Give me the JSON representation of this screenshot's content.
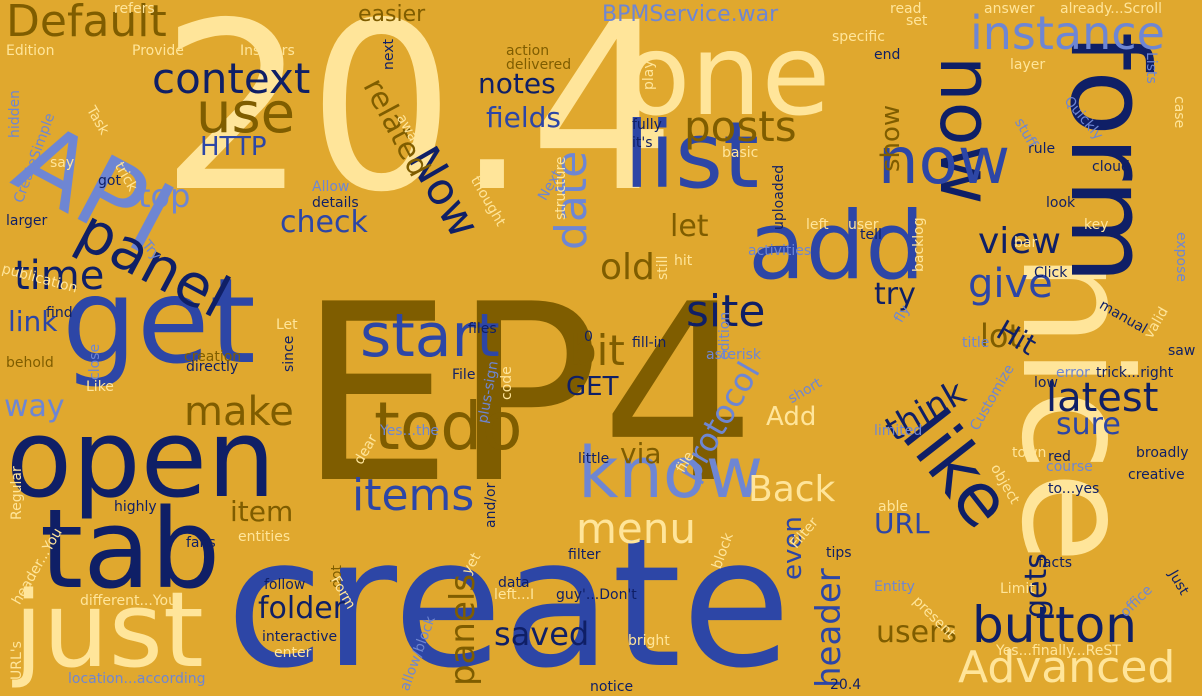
{
  "words": [
    {
      "text": "20.4",
      "color": "c1"
    },
    {
      "text": "EP4",
      "color": "c2"
    },
    {
      "text": "create",
      "color": "c4"
    },
    {
      "text": "nice",
      "color": "c1"
    },
    {
      "text": "form",
      "color": "c3"
    },
    {
      "text": "one",
      "color": "c1"
    },
    {
      "text": "API",
      "color": "c5"
    },
    {
      "text": "get",
      "color": "c4"
    },
    {
      "text": "open",
      "color": "c3"
    },
    {
      "text": "tab",
      "color": "c3"
    },
    {
      "text": "just",
      "color": "c1"
    },
    {
      "text": "list",
      "color": "c4"
    },
    {
      "text": "add",
      "color": "c4"
    },
    {
      "text": "now",
      "color": "c3"
    },
    {
      "text": "now",
      "color": "c4"
    },
    {
      "text": "know",
      "color": "c5"
    },
    {
      "text": "like",
      "color": "c3"
    },
    {
      "text": "todo",
      "color": "c2"
    },
    {
      "text": "start",
      "color": "c4"
    },
    {
      "text": "panel",
      "color": "c3"
    },
    {
      "text": "use",
      "color": "c2"
    },
    {
      "text": "button",
      "color": "c3"
    },
    {
      "text": "Advanced",
      "color": "c1"
    },
    {
      "text": "instance",
      "color": "c5"
    },
    {
      "text": "context",
      "color": "c3"
    },
    {
      "text": "Default",
      "color": "c2"
    },
    {
      "text": "Now",
      "color": "c3"
    },
    {
      "text": "items",
      "color": "c4"
    },
    {
      "text": "menu",
      "color": "c1"
    },
    {
      "text": "site",
      "color": "c3"
    },
    {
      "text": "posts",
      "color": "c2"
    },
    {
      "text": "date",
      "color": "c5"
    },
    {
      "text": "bit",
      "color": "c2"
    },
    {
      "text": "time",
      "color": "c3"
    },
    {
      "text": "make",
      "color": "c2"
    },
    {
      "text": "view",
      "color": "c3"
    },
    {
      "text": "give",
      "color": "c4"
    },
    {
      "text": "latest",
      "color": "c3"
    },
    {
      "text": "header",
      "color": "c4"
    },
    {
      "text": "protocol",
      "color": "c5"
    },
    {
      "text": "think",
      "color": "c3"
    },
    {
      "text": "Back",
      "color": "c1"
    },
    {
      "text": "saved",
      "color": "c3"
    },
    {
      "text": "panels",
      "color": "c2"
    },
    {
      "text": "folder",
      "color": "c3"
    },
    {
      "text": "users",
      "color": "c2"
    },
    {
      "text": "gets",
      "color": "c3"
    },
    {
      "text": "lot",
      "color": "c2"
    },
    {
      "text": "sure",
      "color": "c4"
    },
    {
      "text": "check",
      "color": "c4"
    },
    {
      "text": "fields",
      "color": "c4"
    },
    {
      "text": "notes",
      "color": "c3"
    },
    {
      "text": "related",
      "color": "c2"
    },
    {
      "text": "HTTP",
      "color": "c4"
    },
    {
      "text": "top",
      "color": "c5"
    },
    {
      "text": "link",
      "color": "c4"
    },
    {
      "text": "way",
      "color": "c5"
    },
    {
      "text": "item",
      "color": "c2"
    },
    {
      "text": "old",
      "color": "c2"
    },
    {
      "text": "let",
      "color": "c2"
    },
    {
      "text": "try",
      "color": "c3"
    },
    {
      "text": "Hit",
      "color": "c3"
    },
    {
      "text": "show",
      "color": "c2"
    },
    {
      "text": "Add",
      "color": "c1"
    },
    {
      "text": "via",
      "color": "c2"
    },
    {
      "text": "URL",
      "color": "c4"
    },
    {
      "text": "even",
      "color": "c4"
    },
    {
      "text": "GET",
      "color": "c3"
    },
    {
      "text": "BPMService.war",
      "color": "c5"
    },
    {
      "text": "easier",
      "color": "c2"
    },
    {
      "text": "Insiders",
      "color": "c1"
    },
    {
      "text": "Provide",
      "color": "c1"
    },
    {
      "text": "refers",
      "color": "c1"
    },
    {
      "text": "next",
      "color": "c3"
    },
    {
      "text": "action",
      "color": "c2"
    },
    {
      "text": "delivered",
      "color": "c2"
    },
    {
      "text": "play",
      "color": "c1"
    },
    {
      "text": "specific",
      "color": "c1"
    },
    {
      "text": "end",
      "color": "c3"
    },
    {
      "text": "read",
      "color": "c1"
    },
    {
      "text": "set",
      "color": "c1"
    },
    {
      "text": "answer",
      "color": "c1"
    },
    {
      "text": "already...Scroll",
      "color": "c1"
    },
    {
      "text": "layer",
      "color": "c1"
    },
    {
      "text": "Lists",
      "color": "c5"
    },
    {
      "text": "case",
      "color": "c1"
    },
    {
      "text": "Edition",
      "color": "c1"
    },
    {
      "text": "hidden",
      "color": "c5"
    },
    {
      "text": "Task",
      "color": "c1"
    },
    {
      "text": "CreateSimple",
      "color": "c5"
    },
    {
      "text": "say",
      "color": "c1"
    },
    {
      "text": "larger",
      "color": "c3"
    },
    {
      "text": "got",
      "color": "c3"
    },
    {
      "text": "trick",
      "color": "c1"
    },
    {
      "text": "publication",
      "color": "c1"
    },
    {
      "text": "find",
      "color": "c3"
    },
    {
      "text": "behold",
      "color": "c2"
    },
    {
      "text": "Like",
      "color": "c1"
    },
    {
      "text": "Regular",
      "color": "c1"
    },
    {
      "text": "header...You",
      "color": "c1"
    },
    {
      "text": "different...You",
      "color": "c1"
    },
    {
      "text": "URL's",
      "color": "c1"
    },
    {
      "text": "location...according",
      "color": "c5"
    },
    {
      "text": "enter",
      "color": "c1"
    },
    {
      "text": "interactive",
      "color": "c3"
    },
    {
      "text": "follow",
      "color": "c3"
    },
    {
      "text": "dot",
      "color": "c2"
    },
    {
      "text": "Form",
      "color": "c1"
    },
    {
      "text": "allow/block",
      "color": "c5"
    },
    {
      "text": "data",
      "color": "c3"
    },
    {
      "text": "left...I",
      "color": "c1"
    },
    {
      "text": "guy'...Don't",
      "color": "c3"
    },
    {
      "text": "bright",
      "color": "c1"
    },
    {
      "text": "notice",
      "color": "c3"
    },
    {
      "text": "20.4",
      "color": "c3"
    },
    {
      "text": "Yes...finally...ReST",
      "color": "c1"
    },
    {
      "text": "Entity",
      "color": "c5"
    },
    {
      "text": "Limit",
      "color": "c1"
    },
    {
      "text": "office",
      "color": "c5"
    },
    {
      "text": "Just",
      "color": "c3"
    },
    {
      "text": "facts",
      "color": "c3"
    },
    {
      "text": "present",
      "color": "c1"
    },
    {
      "text": "tips",
      "color": "c3"
    },
    {
      "text": "able",
      "color": "c1"
    },
    {
      "text": "Filter",
      "color": "c1"
    },
    {
      "text": "block",
      "color": "c1"
    },
    {
      "text": "filter",
      "color": "c3"
    },
    {
      "text": "file",
      "color": "c1"
    },
    {
      "text": "little",
      "color": "c3"
    },
    {
      "text": "and/or",
      "color": "c3"
    },
    {
      "text": "yet",
      "color": "c1"
    },
    {
      "text": "fans",
      "color": "c3"
    },
    {
      "text": "highly",
      "color": "c3"
    },
    {
      "text": "entities",
      "color": "c1"
    },
    {
      "text": "close",
      "color": "c5"
    },
    {
      "text": "directly",
      "color": "c3"
    },
    {
      "text": "since",
      "color": "c3"
    },
    {
      "text": "Let",
      "color": "c1"
    },
    {
      "text": "creation",
      "color": "c2"
    },
    {
      "text": "files",
      "color": "c3"
    },
    {
      "text": "plus-sign",
      "color": "c5"
    },
    {
      "text": "code",
      "color": "c1"
    },
    {
      "text": "File",
      "color": "c3"
    },
    {
      "text": "Yes...the",
      "color": "c5"
    },
    {
      "text": "dear",
      "color": "c1"
    },
    {
      "text": "0",
      "color": "c3"
    },
    {
      "text": "fill-in",
      "color": "c3"
    },
    {
      "text": "asterisk",
      "color": "c5"
    },
    {
      "text": "edition",
      "color": "c5"
    },
    {
      "text": "hit",
      "color": "c1"
    },
    {
      "text": "still",
      "color": "c1"
    },
    {
      "text": "activities",
      "color": "c5"
    },
    {
      "text": "left",
      "color": "c1"
    },
    {
      "text": "user",
      "color": "c1"
    },
    {
      "text": "tell",
      "color": "c3"
    },
    {
      "text": "backlog",
      "color": "c1"
    },
    {
      "text": "short",
      "color": "c5"
    },
    {
      "text": "limited",
      "color": "c5"
    },
    {
      "text": "title",
      "color": "c5"
    },
    {
      "text": "Customize",
      "color": "c5"
    },
    {
      "text": "town",
      "color": "c1"
    },
    {
      "text": "red",
      "color": "c3"
    },
    {
      "text": "course",
      "color": "c5"
    },
    {
      "text": "to...yes",
      "color": "c3"
    },
    {
      "text": "object",
      "color": "c1"
    },
    {
      "text": "creative",
      "color": "c3"
    },
    {
      "text": "broadly",
      "color": "c3"
    },
    {
      "text": "error",
      "color": "c5"
    },
    {
      "text": "low",
      "color": "c3"
    },
    {
      "text": "trick...right",
      "color": "c3"
    },
    {
      "text": "saw",
      "color": "c3"
    },
    {
      "text": "manual",
      "color": "c3"
    },
    {
      "text": "valid",
      "color": "c1"
    },
    {
      "text": "Click",
      "color": "c3"
    },
    {
      "text": "bar",
      "color": "c1"
    },
    {
      "text": "key",
      "color": "c1"
    },
    {
      "text": "expose",
      "color": "c5"
    },
    {
      "text": "look",
      "color": "c3"
    },
    {
      "text": "cloud",
      "color": "c3"
    },
    {
      "text": "rule",
      "color": "c3"
    },
    {
      "text": "stuff",
      "color": "c5"
    },
    {
      "text": "Quickly",
      "color": "c5"
    },
    {
      "text": "basic",
      "color": "c1"
    },
    {
      "text": "fully",
      "color": "c3"
    },
    {
      "text": "uploaded",
      "color": "c3"
    },
    {
      "text": "structure",
      "color": "c1"
    },
    {
      "text": "Next",
      "color": "c5"
    },
    {
      "text": "it's",
      "color": "c3"
    },
    {
      "text": "thought",
      "color": "c1"
    },
    {
      "text": "details",
      "color": "c3"
    },
    {
      "text": "Allow",
      "color": "c5"
    },
    {
      "text": "aware",
      "color": "c1"
    },
    {
      "text": "Try",
      "color": "c5"
    },
    {
      "text": "fly",
      "color": "c5"
    }
  ]
}
